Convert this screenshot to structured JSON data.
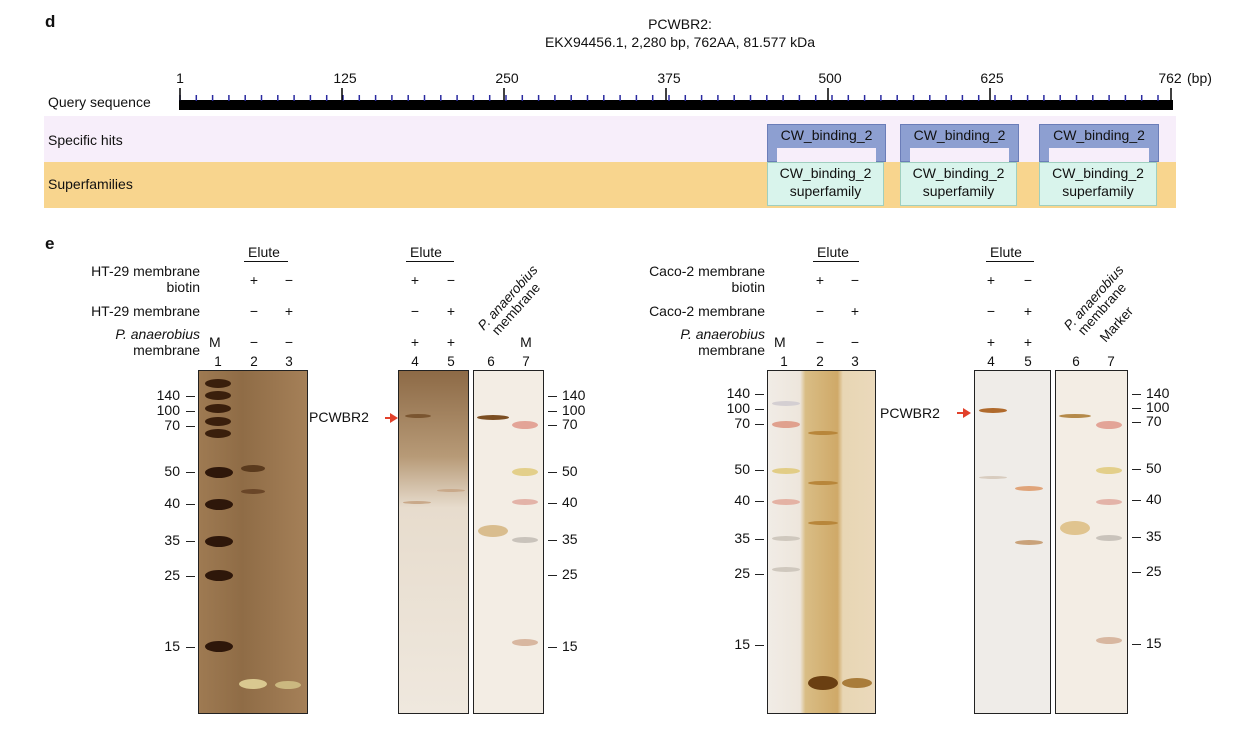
{
  "panel_d": {
    "letter": "d",
    "title_line1": "PCWBR2:",
    "title_line2": "EKX94456.1, 2,280 bp, 762AA, 81.577 kDa",
    "ruler_ticks": [
      "1",
      "125",
      "250",
      "375",
      "500",
      "625",
      "762"
    ],
    "ruler_unit": "(bp)",
    "query_label": "Query sequence",
    "specific_hits_label": "Specific hits",
    "superfamilies_label": "Superfamilies",
    "hits": [
      "CW_binding_2",
      "CW_binding_2",
      "CW_binding_2"
    ],
    "superfamilies": [
      {
        "line1": "CW_binding_2",
        "line2": "superfamily"
      },
      {
        "line1": "CW_binding_2",
        "line2": "superfamily"
      },
      {
        "line1": "CW_binding_2",
        "line2": "superfamily"
      }
    ]
  },
  "panel_e": {
    "letter": "e",
    "elute": "Elute",
    "plus": "+",
    "minus": "−",
    "left": {
      "row1_line1": "HT-29 membrane",
      "row1_line2": "biotin",
      "row2": "HT-29 membrane",
      "row3_line1": "P. anaerobius",
      "row3_line2": "membrane",
      "M": "M",
      "lanes": [
        "1",
        "2",
        "3",
        "4",
        "5",
        "6",
        "7"
      ],
      "rot_line1": "P. anaerobius",
      "rot_line2": "membrane",
      "lane7_label": "M",
      "pcwbr2": "PCWBR2",
      "mw_left": [
        "140",
        "100",
        "70",
        "50",
        "40",
        "35",
        "25",
        "15"
      ],
      "mw_right": [
        "140",
        "100",
        "70",
        "50",
        "40",
        "35",
        "25",
        "15"
      ]
    },
    "right": {
      "row1_line1": "Caco-2 membrane",
      "row1_line2": "biotin",
      "row2": "Caco-2 membrane",
      "row3_line1": "P. anaerobius",
      "row3_line2": "membrane",
      "M": "M",
      "lanes": [
        "1",
        "2",
        "3",
        "4",
        "5",
        "6",
        "7"
      ],
      "rot_line1": "P. anaerobius",
      "rot_line2": "membrane",
      "rot_marker": "Marker",
      "pcwbr2": "PCWBR2",
      "mw_left": [
        "140",
        "100",
        "70",
        "50",
        "40",
        "35",
        "25",
        "15"
      ],
      "mw_right": [
        "140",
        "100",
        "70",
        "50",
        "40",
        "35",
        "25",
        "15"
      ]
    }
  },
  "colors": {
    "hit_box": "#8d9fd1",
    "superfamily_box": "#d9f4ec",
    "specific_band": "#f7eefa",
    "superfamily_band": "#f8d58e",
    "arrow": "#e2412b"
  }
}
